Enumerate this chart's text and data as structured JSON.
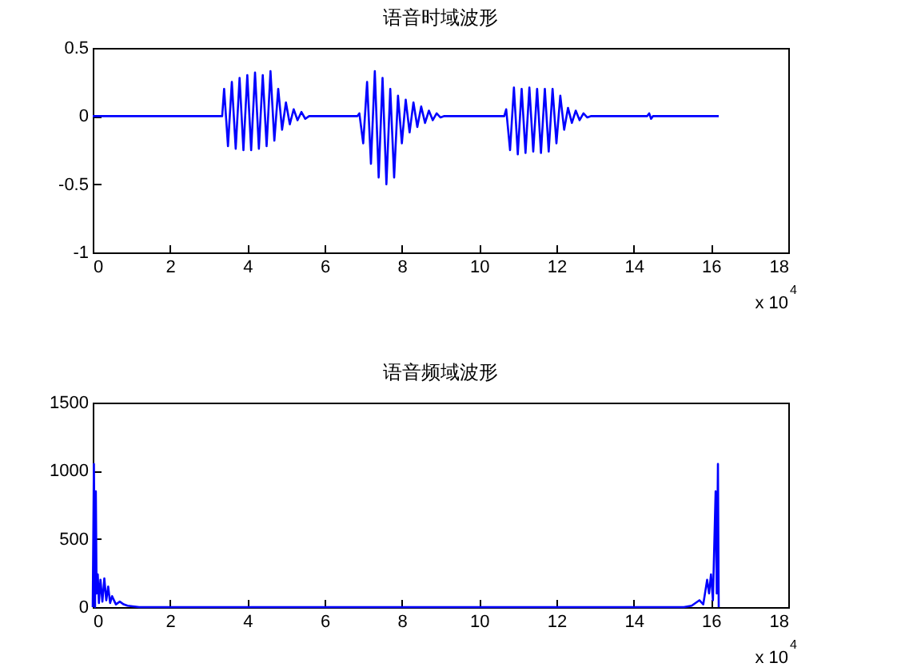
{
  "chart_data": [
    {
      "type": "line",
      "title": "语音时域波形",
      "xlim": [
        0,
        18
      ],
      "xticks": [
        0,
        2,
        4,
        6,
        8,
        10,
        12,
        14,
        16,
        18
      ],
      "ylim": [
        -1,
        0.5
      ],
      "yticks": [
        -1,
        -0.5,
        0,
        0.5
      ],
      "grid": false,
      "legend": false,
      "annotations": [
        "x 10$^{4}$"
      ],
      "series": [
        {
          "color": "#0000ff",
          "x": [
            0,
            3.35,
            3.4,
            3.5,
            3.6,
            3.7,
            3.8,
            3.9,
            4.0,
            4.1,
            4.2,
            4.3,
            4.4,
            4.5,
            4.6,
            4.7,
            4.8,
            4.9,
            5.0,
            5.1,
            5.2,
            5.3,
            5.4,
            5.5,
            5.6,
            6.85,
            6.9,
            7.0,
            7.1,
            7.2,
            7.3,
            7.4,
            7.5,
            7.6,
            7.7,
            7.8,
            7.9,
            8.0,
            8.1,
            8.2,
            8.3,
            8.4,
            8.5,
            8.6,
            8.7,
            8.8,
            8.9,
            9.0,
            9.1,
            10.65,
            10.7,
            10.8,
            10.9,
            11.0,
            11.1,
            11.2,
            11.3,
            11.4,
            11.5,
            11.6,
            11.7,
            11.8,
            11.9,
            12.0,
            12.1,
            12.2,
            12.3,
            12.4,
            12.5,
            12.6,
            12.7,
            12.8,
            12.9,
            14.35,
            14.4,
            14.45,
            14.5,
            16.2
          ],
          "values": [
            0,
            0,
            0.2,
            -0.22,
            0.25,
            -0.24,
            0.28,
            -0.25,
            0.3,
            -0.25,
            0.32,
            -0.24,
            0.3,
            -0.22,
            0.33,
            -0.18,
            0.2,
            -0.1,
            0.1,
            -0.06,
            0.05,
            -0.03,
            0.03,
            -0.02,
            0,
            0,
            0.02,
            -0.2,
            0.25,
            -0.35,
            0.33,
            -0.45,
            0.28,
            -0.5,
            0.2,
            -0.45,
            0.15,
            -0.2,
            0.12,
            -0.12,
            0.1,
            -0.08,
            0.07,
            -0.05,
            0.04,
            -0.03,
            0.02,
            -0.01,
            0,
            0,
            0.05,
            -0.25,
            0.21,
            -0.28,
            0.2,
            -0.27,
            0.21,
            -0.26,
            0.2,
            -0.27,
            0.2,
            -0.26,
            0.2,
            -0.2,
            0.15,
            -0.1,
            0.06,
            -0.05,
            0.04,
            -0.03,
            0.02,
            -0.01,
            0,
            0,
            0.02,
            -0.02,
            0,
            0
          ]
        }
      ]
    },
    {
      "type": "line",
      "title": "语音频域波形",
      "xlim": [
        0,
        18
      ],
      "xticks": [
        0,
        2,
        4,
        6,
        8,
        10,
        12,
        14,
        16,
        18
      ],
      "ylim": [
        0,
        1500
      ],
      "yticks": [
        0,
        500,
        1000,
        1500
      ],
      "grid": false,
      "legend": false,
      "annotations": [
        "x 10$^{4}$"
      ],
      "series": [
        {
          "color": "#0000ff",
          "x": [
            0,
            0.03,
            0.06,
            0.08,
            0.1,
            0.13,
            0.16,
            0.2,
            0.25,
            0.3,
            0.35,
            0.4,
            0.45,
            0.5,
            0.6,
            0.7,
            0.8,
            0.9,
            1.2,
            15.3,
            15.5,
            15.7,
            15.8,
            15.9,
            15.95,
            16.0,
            16.05,
            16.12,
            16.15,
            16.18,
            16.2
          ],
          "values": [
            0,
            1050,
            0,
            850,
            100,
            240,
            30,
            200,
            40,
            210,
            50,
            150,
            30,
            80,
            20,
            40,
            20,
            10,
            0,
            0,
            10,
            50,
            20,
            200,
            100,
            240,
            50,
            850,
            100,
            1050,
            0
          ]
        }
      ]
    }
  ]
}
